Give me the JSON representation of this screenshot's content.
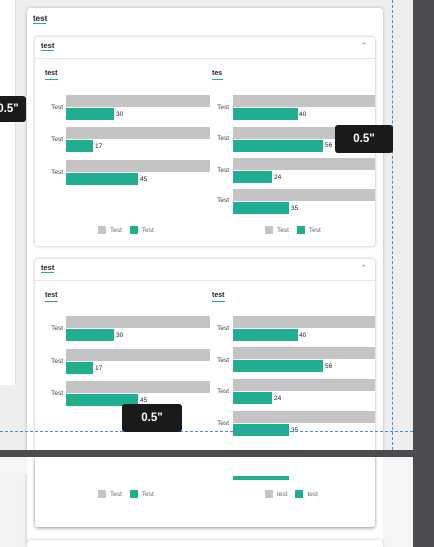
{
  "outer_title": "test",
  "tooltip_label": "0.5\"",
  "panels": [
    {
      "title": "test",
      "charts": [
        {
          "title": "test",
          "categories": [
            "Test",
            "Test",
            "Test"
          ],
          "values": [
            30,
            17,
            45
          ],
          "value_labels": [
            "30",
            "17",
            "45"
          ],
          "legend": [
            "Test",
            "Test"
          ]
        },
        {
          "title": "tes",
          "categories": [
            "Test",
            "Test",
            "Test",
            "Test"
          ],
          "values": [
            40,
            56,
            24,
            35
          ],
          "value_labels": [
            "40",
            "56",
            "24",
            "35"
          ],
          "legend": [
            "Test",
            "Test"
          ]
        }
      ]
    },
    {
      "title": "test",
      "charts": [
        {
          "title": "test",
          "categories": [
            "Test",
            "Test",
            "Test"
          ],
          "values": [
            30,
            17,
            45
          ],
          "value_labels": [
            "30",
            "17",
            "45"
          ],
          "legend": [
            "Test",
            "Test"
          ]
        },
        {
          "title": "test",
          "categories": [
            "Test",
            "Test",
            "Test",
            "Test"
          ],
          "values": [
            40,
            56,
            24,
            35
          ],
          "value_labels": [
            "40",
            "56",
            "24",
            "35"
          ],
          "legend": [
            "test",
            "test"
          ]
        }
      ]
    }
  ],
  "colors": {
    "accent": "#1fae8f",
    "grey_bar": "#c4c4c4",
    "dark_chrome": "#4b4c50",
    "tooltip_bg": "#1a1a1a",
    "guide": "#4a8ad8"
  },
  "icons": {
    "collapse": "chevron-up-icon"
  }
}
